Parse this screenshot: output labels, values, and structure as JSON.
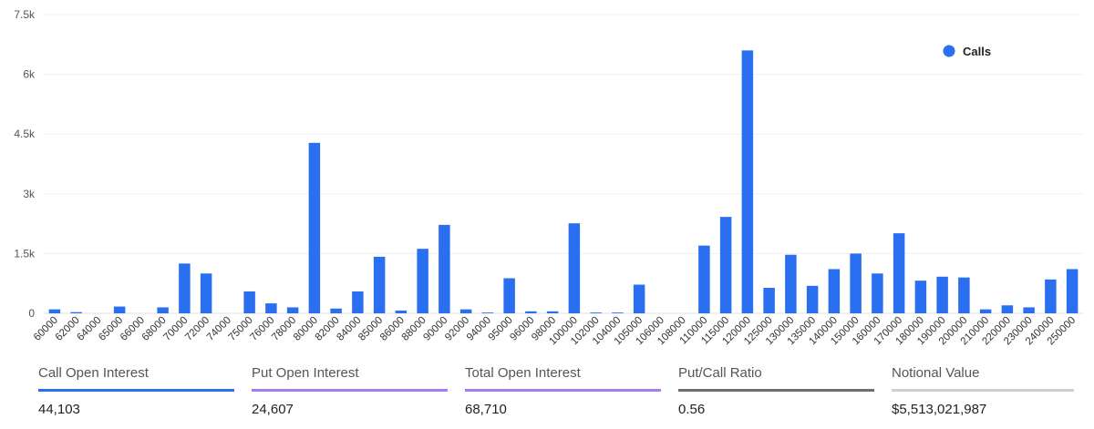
{
  "chart_data": {
    "type": "bar",
    "categories": [
      "60000",
      "62000",
      "64000",
      "65000",
      "66000",
      "68000",
      "70000",
      "72000",
      "74000",
      "75000",
      "76000",
      "78000",
      "80000",
      "82000",
      "84000",
      "85000",
      "86000",
      "88000",
      "90000",
      "92000",
      "94000",
      "95000",
      "96000",
      "98000",
      "100000",
      "102000",
      "104000",
      "105000",
      "106000",
      "108000",
      "110000",
      "115000",
      "120000",
      "125000",
      "130000",
      "135000",
      "140000",
      "150000",
      "160000",
      "170000",
      "180000",
      "190000",
      "200000",
      "210000",
      "220000",
      "230000",
      "240000",
      "250000"
    ],
    "series": [
      {
        "name": "Calls",
        "color": "#2a6ff0",
        "values": [
          100,
          30,
          0,
          170,
          0,
          150,
          1250,
          1000,
          0,
          550,
          250,
          150,
          4280,
          120,
          550,
          1420,
          70,
          1620,
          2220,
          100,
          20,
          880,
          50,
          50,
          2260,
          20,
          20,
          720,
          0,
          0,
          1700,
          2420,
          6600,
          640,
          1470,
          690,
          1110,
          1500,
          1000,
          2010,
          820,
          920,
          900,
          100,
          200,
          150,
          850,
          1110
        ]
      }
    ],
    "yticks": [
      "0",
      "1.5k",
      "3k",
      "4.5k",
      "6k",
      "7.5k"
    ],
    "ytick_values": [
      0,
      1500,
      3000,
      4500,
      6000,
      7500
    ],
    "ylim": [
      0,
      7500
    ],
    "grid": true,
    "legend": "top-right"
  },
  "stats": [
    {
      "label": "Call Open Interest",
      "value": "44,103",
      "color": "#2a6ff0"
    },
    {
      "label": "Put Open Interest",
      "value": "24,607",
      "color": "#a97bef"
    },
    {
      "label": "Total Open Interest",
      "value": "68,710",
      "color": "#a97bef"
    },
    {
      "label": "Put/Call Ratio",
      "value": "0.56",
      "color": "#6d6d75"
    },
    {
      "label": "Notional Value",
      "value": "$5,513,021,987",
      "color": "#cfcfcf"
    }
  ]
}
